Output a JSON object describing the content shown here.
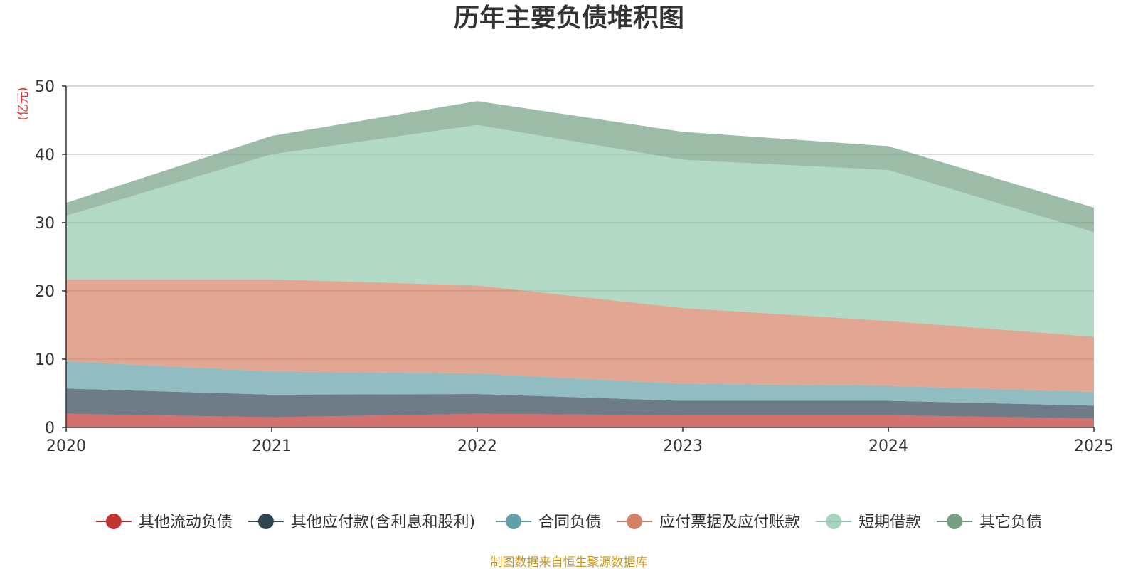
{
  "chart_data": {
    "type": "area",
    "stacked": true,
    "title": "历年主要负债堆积图",
    "unit_label": "(亿元)",
    "x": [
      "2020",
      "2021",
      "2022",
      "2023",
      "2024",
      "2025"
    ],
    "ylim": [
      0,
      50
    ],
    "yticks": [
      0,
      10,
      20,
      30,
      40,
      50
    ],
    "grid": true,
    "legend_position": "bottom",
    "series": [
      {
        "name": "其他流动负债",
        "color": "#c23531",
        "values": [
          2.0,
          1.5,
          2.0,
          1.8,
          1.8,
          1.3
        ]
      },
      {
        "name": "其他应付款(含利息和股利)",
        "color": "#2f4554",
        "values": [
          3.7,
          3.3,
          2.9,
          2.1,
          2.1,
          1.9
        ]
      },
      {
        "name": "合同负债",
        "color": "#61a0a8",
        "values": [
          4.0,
          3.4,
          3.0,
          2.5,
          2.2,
          2.0
        ]
      },
      {
        "name": "应付票据及应付账款",
        "color": "#d48265",
        "values": [
          12.0,
          13.5,
          12.9,
          11.1,
          9.5,
          8.1
        ]
      },
      {
        "name": "短期借款",
        "color": "#91c7ae",
        "values": [
          9.3,
          18.3,
          23.5,
          21.7,
          22.1,
          15.3
        ]
      },
      {
        "name": "其它负债",
        "color": "#749f83",
        "values": [
          1.9,
          2.7,
          3.5,
          4.1,
          3.5,
          3.6
        ]
      }
    ],
    "source": "制图数据来自恒生聚源数据库",
    "source_color": "#c8961e",
    "unit_color": "#e03030"
  }
}
